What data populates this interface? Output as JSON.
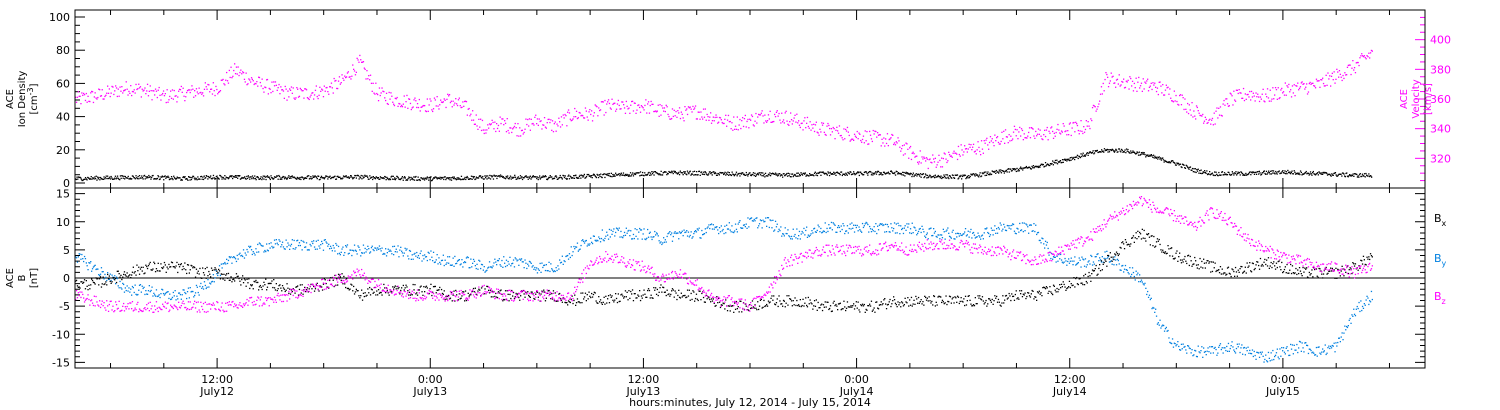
{
  "colors": {
    "black": "#000000",
    "magenta": "#ff00ff",
    "blue": "#0080e0"
  },
  "xlabel": "hours:minutes, July 12, 2014 - July 15, 2014",
  "x_ticks": [
    {
      "t": 12,
      "hm": "12:00",
      "day": "July12"
    },
    {
      "t": 24,
      "hm": "0:00",
      "day": "July13"
    },
    {
      "t": 36,
      "hm": "12:00",
      "day": "July13"
    },
    {
      "t": 48,
      "hm": "0:00",
      "day": "July14"
    },
    {
      "t": 60,
      "hm": "12:00",
      "day": "July14"
    },
    {
      "t": 72,
      "hm": "0:00",
      "day": "July15"
    }
  ],
  "chart_data": [
    {
      "type": "scatter",
      "panel": "top",
      "xlim": [
        4,
        80
      ],
      "x_unit": "hours since 2014-07-12 00:00",
      "ylabel_left": [
        "ACE",
        "Ion Density",
        "[cm^-3]"
      ],
      "ylabel_right": [
        "ACE",
        "Velocity",
        "[km/s]"
      ],
      "ylim_left": [
        0,
        100
      ],
      "yticks_left": [
        0,
        20,
        40,
        60,
        80,
        100
      ],
      "ylim_right": [
        300,
        420
      ],
      "yticks_right": [
        320,
        340,
        360,
        380,
        400
      ],
      "series": [
        {
          "name": "Ion Density",
          "axis": "left",
          "color": "black",
          "x": [
            4,
            6,
            8,
            10,
            12,
            14,
            16,
            18,
            20,
            22,
            24,
            26,
            28,
            30,
            32,
            34,
            36,
            38,
            40,
            42,
            44,
            46,
            48,
            50,
            52,
            54,
            56,
            58,
            60,
            61,
            62,
            63,
            64,
            65,
            66,
            67,
            68,
            70,
            72,
            74,
            76,
            77
          ],
          "y": [
            3,
            3.5,
            4,
            3,
            4,
            3.5,
            3.8,
            3.5,
            4,
            3.2,
            3,
            3.5,
            4,
            3.5,
            4,
            5,
            6,
            6.5,
            6,
            5.5,
            5,
            6,
            6,
            6.5,
            4.5,
            4,
            7,
            10,
            15,
            18,
            20,
            20,
            18,
            15,
            12,
            8,
            6,
            6,
            7,
            6,
            5,
            5
          ]
        },
        {
          "name": "Velocity",
          "axis": "right",
          "color": "magenta",
          "x": [
            4,
            5,
            6,
            7,
            8,
            9,
            10,
            11,
            12,
            13,
            14,
            15,
            16,
            17,
            18,
            19,
            20,
            21,
            22,
            23,
            24,
            25,
            26,
            27,
            28,
            29,
            30,
            31,
            32,
            33,
            34,
            35,
            36,
            37,
            38,
            39,
            40,
            41,
            42,
            43,
            44,
            45,
            46,
            47,
            48,
            49,
            50,
            51,
            52,
            53,
            54,
            55,
            56,
            57,
            58,
            59,
            60,
            61,
            62,
            63,
            64,
            65,
            66,
            67,
            68,
            69,
            70,
            71,
            72,
            73,
            74,
            75,
            76,
            77
          ],
          "y": [
            360,
            362,
            365,
            368,
            366,
            362,
            364,
            366,
            368,
            380,
            372,
            368,
            364,
            364,
            366,
            372,
            385,
            364,
            360,
            358,
            356,
            360,
            354,
            340,
            344,
            340,
            346,
            342,
            350,
            350,
            356,
            354,
            356,
            352,
            350,
            352,
            348,
            344,
            346,
            350,
            348,
            344,
            340,
            338,
            336,
            334,
            332,
            324,
            318,
            320,
            326,
            328,
            334,
            338,
            336,
            338,
            340,
            342,
            374,
            372,
            370,
            368,
            362,
            352,
            346,
            360,
            364,
            362,
            366,
            368,
            370,
            376,
            382,
            392
          ]
        }
      ]
    },
    {
      "type": "scatter",
      "panel": "bottom",
      "xlim": [
        4,
        80
      ],
      "x_unit": "hours since 2014-07-12 00:00",
      "ylabel": [
        "ACE",
        "B",
        "[nT]"
      ],
      "ylim": [
        -16,
        16
      ],
      "yticks": [
        -15,
        -10,
        -5,
        0,
        5,
        10,
        15
      ],
      "zero_line": true,
      "legend": [
        "Bx",
        "By",
        "Bz"
      ],
      "legend_placement": "right",
      "series": [
        {
          "name": "Bx",
          "color": "black",
          "x": [
            4,
            5,
            6,
            7,
            8,
            9,
            10,
            11,
            12,
            13,
            14,
            15,
            16,
            17,
            18,
            19,
            20,
            21,
            22,
            23,
            24,
            25,
            26,
            27,
            28,
            29,
            30,
            31,
            32,
            33,
            34,
            35,
            36,
            37,
            38,
            39,
            40,
            41,
            42,
            43,
            44,
            45,
            46,
            47,
            48,
            49,
            50,
            51,
            52,
            53,
            54,
            55,
            56,
            57,
            58,
            59,
            60,
            61,
            62,
            63,
            64,
            65,
            66,
            67,
            68,
            69,
            70,
            71,
            72,
            73,
            74,
            75,
            76,
            77
          ],
          "y": [
            -1,
            -1,
            0,
            1,
            2,
            2,
            2,
            1,
            1,
            0,
            -1,
            -1,
            -2,
            -2,
            -1,
            0,
            -3,
            -2,
            -2,
            -2,
            -2,
            -3,
            -3,
            -2,
            -3,
            -3,
            -3,
            -3,
            -4,
            -3,
            -4,
            -3,
            -3,
            -2,
            -3,
            -3,
            -4,
            -5,
            -5,
            -4,
            -4,
            -4,
            -5,
            -5,
            -5,
            -5,
            -4,
            -4,
            -4,
            -4,
            -4,
            -4,
            -4,
            -3,
            -3,
            -2,
            -1,
            0,
            3,
            6,
            8,
            6,
            4,
            3,
            2,
            1,
            2,
            3,
            2,
            1,
            1,
            1,
            2,
            4
          ]
        },
        {
          "name": "By",
          "color": "blue",
          "x": [
            4,
            5,
            6,
            7,
            8,
            9,
            10,
            11,
            12,
            13,
            14,
            15,
            16,
            17,
            18,
            19,
            20,
            21,
            22,
            23,
            24,
            25,
            26,
            27,
            28,
            29,
            30,
            31,
            32,
            33,
            34,
            35,
            36,
            37,
            38,
            39,
            40,
            41,
            42,
            43,
            44,
            45,
            46,
            47,
            48,
            49,
            50,
            51,
            52,
            53,
            54,
            55,
            56,
            57,
            58,
            59,
            60,
            61,
            62,
            63,
            64,
            65,
            66,
            67,
            68,
            69,
            70,
            71,
            72,
            73,
            74,
            75,
            76,
            77
          ],
          "y": [
            4,
            2,
            0,
            -2,
            -2,
            -3,
            -3,
            -2,
            1,
            4,
            5,
            6,
            6,
            6,
            6,
            5,
            5,
            5,
            5,
            4,
            4,
            3,
            3,
            2,
            3,
            3,
            2,
            2,
            5,
            7,
            8,
            8,
            8,
            7,
            8,
            8,
            9,
            9,
            10,
            10,
            8,
            8,
            9,
            9,
            9,
            9,
            9,
            9,
            8,
            8,
            8,
            8,
            9,
            9,
            9,
            4,
            3,
            3,
            4,
            2,
            0,
            -8,
            -12,
            -13,
            -13,
            -12,
            -13,
            -14,
            -13,
            -12,
            -13,
            -12,
            -6,
            -3
          ]
        },
        {
          "name": "Bz",
          "color": "magenta",
          "x": [
            4,
            5,
            6,
            7,
            8,
            9,
            10,
            11,
            12,
            13,
            14,
            15,
            16,
            17,
            18,
            19,
            20,
            21,
            22,
            23,
            24,
            25,
            26,
            27,
            28,
            29,
            30,
            31,
            32,
            33,
            34,
            35,
            36,
            37,
            38,
            39,
            40,
            41,
            42,
            43,
            44,
            45,
            46,
            47,
            48,
            49,
            50,
            51,
            52,
            53,
            54,
            55,
            56,
            57,
            58,
            59,
            60,
            61,
            62,
            63,
            64,
            65,
            66,
            67,
            68,
            69,
            70,
            71,
            72,
            73,
            74,
            75,
            76,
            77
          ],
          "y": [
            -3,
            -4,
            -5,
            -5,
            -5,
            -5,
            -5,
            -5,
            -5,
            -5,
            -4,
            -4,
            -3,
            -2,
            -1,
            0,
            1,
            -1,
            -2,
            -3,
            -3,
            -3,
            -3,
            -2,
            -3,
            -3,
            -3,
            -3,
            -3,
            3,
            4,
            3,
            2,
            0,
            1,
            -1,
            -4,
            -4,
            -5,
            -2,
            3,
            4,
            5,
            5,
            5,
            5,
            6,
            5,
            6,
            6,
            6,
            5,
            5,
            4,
            3,
            4,
            6,
            7,
            10,
            12,
            14,
            12,
            11,
            9,
            12,
            10,
            7,
            5,
            4,
            3,
            2,
            2,
            1,
            2
          ]
        }
      ]
    }
  ]
}
